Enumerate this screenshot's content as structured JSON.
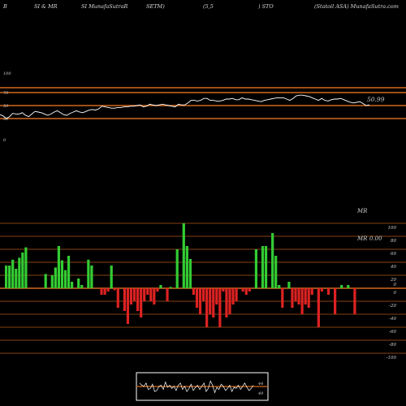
{
  "header": {
    "b": "B",
    "rsi_mrsi": "SI & MR",
    "site1": "SI MunafaSutraR",
    "setm": "SETM)",
    "param": "(5,5",
    "sym": ") STO",
    "company": "(Statoil ASA) MunafaSutra.com"
  },
  "colors": {
    "background": "#000000",
    "orange_line": "#d2691e",
    "rsi_line": "#ffffff",
    "bar_positive": "#33cc33",
    "bar_negative": "#dd2222",
    "axis_text": "#cccccc"
  },
  "chart_data": [
    {
      "type": "line",
      "name": "RSI",
      "values": [
        36,
        34,
        30,
        33,
        38,
        37,
        37,
        39,
        35,
        33,
        37,
        41,
        40,
        39,
        37,
        35,
        37,
        40,
        42,
        39,
        36,
        35,
        38,
        40,
        42,
        40,
        39,
        41,
        43,
        44,
        43,
        45,
        49,
        48,
        47,
        46,
        46,
        47,
        47,
        48,
        48,
        49,
        49,
        50,
        51,
        48,
        49,
        52,
        51,
        50,
        51,
        52,
        51,
        50,
        49,
        48,
        52,
        51,
        51,
        54,
        58,
        58,
        57,
        58,
        61,
        61,
        58,
        58,
        57,
        57,
        58,
        60,
        60,
        61,
        59,
        59,
        62,
        60,
        60,
        59,
        58,
        57,
        56,
        58,
        59,
        60,
        61,
        62,
        62,
        62,
        60,
        58,
        61,
        65,
        66,
        66,
        65,
        64,
        62,
        60,
        58,
        61,
        58,
        57,
        59,
        60,
        60,
        61,
        59,
        57,
        55,
        54,
        55,
        56,
        53,
        50,
        51
      ],
      "ylim": [
        0,
        100
      ],
      "yticks": [
        "100",
        "70",
        "50",
        "30",
        "0"
      ],
      "reference_lines": [
        70,
        50,
        30
      ],
      "last_value_label": "50.99"
    },
    {
      "type": "bar",
      "title": "MR",
      "values": [
        35,
        35,
        44,
        30,
        47,
        55,
        63,
        0,
        0,
        0,
        0,
        0,
        22,
        0,
        20,
        32,
        65,
        43,
        28,
        50,
        10,
        0,
        15,
        5,
        0,
        44,
        35,
        0,
        0,
        -10,
        -10,
        -5,
        35,
        -3,
        -30,
        0,
        -35,
        -55,
        -25,
        -20,
        -35,
        -45,
        -20,
        -10,
        -20,
        -25,
        -5,
        5,
        0,
        -20,
        2,
        0,
        60,
        0,
        100,
        65,
        45,
        -10,
        -30,
        -40,
        -20,
        -60,
        -40,
        -45,
        -25,
        -60,
        -5,
        -45,
        -40,
        -25,
        -20,
        0,
        -5,
        -10,
        -5,
        0,
        60,
        0,
        65,
        65,
        0,
        85,
        50,
        5,
        -30,
        0,
        10,
        -30,
        -20,
        -25,
        -40,
        -25,
        -30,
        -10,
        0,
        -60,
        -5,
        0,
        -10,
        0,
        -40,
        0,
        5,
        0,
        5,
        0,
        -40,
        0
      ],
      "y_tick_labels": [
        "100",
        "80",
        "60",
        "40",
        "20",
        "0",
        "0",
        "-20",
        "-40",
        "-60",
        "-80",
        "-100"
      ],
      "last_value_label": "0.00",
      "side_label": "MR"
    },
    {
      "type": "line",
      "name": "mini",
      "values": [
        70,
        60,
        55,
        70,
        40,
        45,
        65,
        30,
        35,
        55,
        60,
        40,
        75,
        50,
        60,
        45,
        55,
        35,
        60,
        70,
        40,
        55,
        30,
        45,
        65,
        35,
        50,
        60,
        40,
        55,
        70,
        30,
        45,
        80,
        60,
        25,
        50,
        40,
        65,
        55,
        35,
        45,
        60,
        30,
        50,
        45,
        60,
        40,
        55,
        70,
        50,
        35,
        45,
        60
      ],
      "yticks": [
        "44",
        "49"
      ]
    }
  ]
}
